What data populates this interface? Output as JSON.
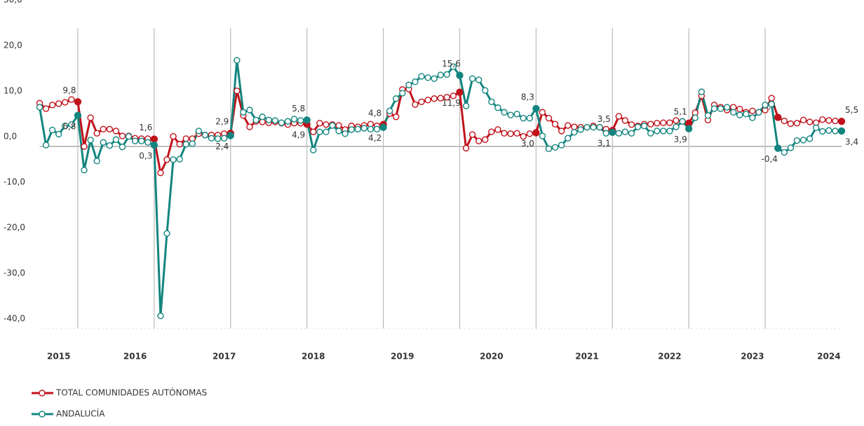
{
  "chart_data": {
    "type": "line",
    "categories": [
      null,
      null,
      null,
      "2015",
      null,
      null,
      null,
      null,
      null,
      null,
      null,
      null,
      null,
      null,
      null,
      "2016",
      null,
      null,
      null,
      null,
      null,
      null,
      null,
      null,
      null,
      null,
      null,
      null,
      null,
      "2017",
      null,
      null,
      null,
      null,
      null,
      null,
      null,
      null,
      null,
      null,
      null,
      null,
      null,
      "2018",
      null,
      null,
      null,
      null,
      null,
      null,
      null,
      null,
      null,
      null,
      null,
      null,
      null,
      "2019",
      null,
      null,
      null,
      null,
      null,
      null,
      null,
      null,
      null,
      null,
      null,
      null,
      null,
      "2020",
      null,
      null,
      null,
      null,
      null,
      null,
      null,
      null,
      null,
      null,
      null,
      null,
      null,
      null,
      "2021",
      null,
      null,
      null,
      null,
      null,
      null,
      null,
      null,
      null,
      null,
      null,
      null,
      "2022",
      null,
      null,
      null,
      null,
      null,
      null,
      null,
      null,
      null,
      null,
      null,
      null,
      "2023",
      null,
      null,
      null,
      null,
      null,
      null,
      null,
      null,
      null,
      null,
      null,
      "2024",
      null,
      null
    ],
    "series": [
      {
        "name": "TOTAL COMUNIDADES AUTÓNOMAS",
        "color": "#c0121b",
        "values": [
          9.5,
          8.3,
          9.1,
          9.4,
          9.7,
          10.3,
          9.8,
          0,
          6.3,
          2.9,
          3.8,
          3.8,
          3.4,
          2.3,
          2.3,
          1.8,
          1.7,
          1.7,
          1.6,
          -5.8,
          -2.9,
          2.2,
          0.5,
          1.7,
          1.7,
          2.8,
          2.5,
          2.5,
          2.5,
          2.8,
          2.9,
          12.2,
          6.8,
          4.3,
          5.5,
          5.4,
          5.2,
          5.4,
          5.1,
          4.8,
          5.1,
          5.1,
          4.9,
          3.2,
          5.1,
          4.8,
          4.8,
          4.6,
          3.7,
          4.5,
          4.3,
          4.6,
          4.9,
          4.5,
          4.8,
          7.2,
          6.5,
          12.5,
          12.6,
          9.2,
          9.8,
          10.2,
          10.5,
          10.6,
          10.8,
          11.1,
          11.9,
          -0.4,
          2.6,
          1.2,
          1.5,
          3.2,
          3.7,
          2.9,
          2.8,
          2.9,
          2.2,
          2.8,
          3.0,
          7.5,
          6.2,
          4.9,
          3.4,
          4.6,
          4.3,
          4.2,
          4.2,
          4.5,
          4.2,
          3.8,
          3.5,
          6.6,
          5.7,
          4.8,
          4.5,
          4.9,
          4.9,
          5.1,
          5.2,
          5.2,
          5.7,
          5.5,
          5.1,
          7.4,
          11.1,
          5.8,
          9.1,
          8.6,
          8.0,
          8.6,
          8.2,
          7.5,
          7.8,
          7.5,
          8.0,
          10.6,
          6.4,
          5.6,
          5.0,
          5.1,
          5.8,
          5.4,
          5.2,
          5.9,
          5.7,
          5.6,
          5.5
        ],
        "value_labels": [
          null,
          null,
          null,
          null,
          null,
          null,
          "9,8",
          null,
          null,
          null,
          null,
          null,
          null,
          null,
          null,
          null,
          null,
          null,
          "1,6",
          null,
          null,
          null,
          null,
          null,
          null,
          null,
          null,
          null,
          null,
          null,
          "2,9",
          null,
          null,
          null,
          null,
          null,
          null,
          null,
          null,
          null,
          null,
          null,
          "4,9",
          null,
          null,
          null,
          null,
          null,
          null,
          null,
          null,
          null,
          null,
          null,
          "4,8",
          null,
          null,
          null,
          null,
          null,
          null,
          null,
          null,
          null,
          null,
          null,
          "11,9",
          null,
          null,
          null,
          null,
          null,
          null,
          null,
          null,
          null,
          null,
          null,
          "3,0",
          null,
          null,
          null,
          null,
          null,
          null,
          null,
          null,
          null,
          null,
          null,
          "3,5",
          null,
          null,
          null,
          null,
          null,
          null,
          null,
          null,
          null,
          null,
          null,
          "5,1",
          null,
          null,
          null,
          null,
          null,
          null,
          null,
          null,
          null,
          null,
          null,
          null,
          null,
          "6,4",
          null,
          null,
          null,
          null,
          null,
          null,
          null,
          null,
          null,
          "5,5"
        ]
      },
      {
        "name": "ANDALUCÍA",
        "color": "#13857f",
        "values": [
          8.6,
          0.3,
          3.6,
          2.7,
          4.5,
          4.8,
          6.8,
          -5.2,
          1.4,
          -3.2,
          0.9,
          0.2,
          1.5,
          -0.1,
          2.2,
          1.2,
          1.2,
          0.9,
          0.3,
          -37.2,
          -19.1,
          -2.9,
          -2.8,
          0.5,
          0.6,
          3.4,
          2.5,
          1.8,
          1.7,
          1.8,
          2.4,
          18.9,
          7.5,
          8.0,
          5.8,
          6.5,
          5.8,
          5.7,
          5.2,
          5.5,
          6.0,
          5.7,
          5.8,
          -0.8,
          3.2,
          3.2,
          4.6,
          3.4,
          2.8,
          3.7,
          3.8,
          4.0,
          3.8,
          3.8,
          4.2,
          7.8,
          10.5,
          11.7,
          13.5,
          14.2,
          15.4,
          15.1,
          14.9,
          15.7,
          15.8,
          17.5,
          15.6,
          8.9,
          14.9,
          14.6,
          12.3,
          9.8,
          8.5,
          7.5,
          6.9,
          7.1,
          6.2,
          6.2,
          8.3,
          2.3,
          -0.5,
          -0.2,
          0.3,
          1.8,
          3.1,
          3.7,
          4.2,
          4.2,
          4.2,
          2.9,
          3.1,
          2.9,
          3.2,
          2.9,
          4.3,
          4.5,
          2.9,
          3.4,
          3.4,
          3.4,
          4.3,
          5.5,
          3.9,
          6.3,
          12.0,
          6.8,
          8.3,
          8.3,
          8.6,
          7.5,
          6.9,
          7.1,
          6.3,
          7.5,
          9.1,
          9.3,
          -0.4,
          -1.3,
          -0.3,
          1.3,
          1.4,
          1.7,
          4.1,
          3.3,
          3.5,
          3.4,
          3.4
        ],
        "value_labels": [
          null,
          null,
          null,
          null,
          null,
          null,
          "6,8",
          null,
          null,
          null,
          null,
          null,
          null,
          null,
          null,
          null,
          null,
          null,
          "0,3",
          null,
          null,
          null,
          null,
          null,
          null,
          null,
          null,
          null,
          null,
          null,
          "2,4",
          null,
          null,
          null,
          null,
          null,
          null,
          null,
          null,
          null,
          null,
          null,
          "5,8",
          null,
          null,
          null,
          null,
          null,
          null,
          null,
          null,
          null,
          null,
          null,
          "4,2",
          null,
          null,
          null,
          null,
          null,
          null,
          null,
          null,
          null,
          null,
          null,
          "15,6",
          null,
          null,
          null,
          null,
          null,
          null,
          null,
          null,
          null,
          null,
          null,
          "8,3",
          null,
          null,
          null,
          null,
          null,
          null,
          null,
          null,
          null,
          null,
          null,
          "3,1",
          null,
          null,
          null,
          null,
          null,
          null,
          null,
          null,
          null,
          null,
          null,
          "3,9",
          null,
          null,
          null,
          null,
          null,
          null,
          null,
          null,
          null,
          null,
          null,
          null,
          null,
          "-0,4",
          null,
          null,
          null,
          null,
          null,
          null,
          null,
          null,
          null,
          "3,4"
        ]
      }
    ],
    "ylim": [
      -40,
      30
    ],
    "yticks": [
      {
        "value": 30,
        "label": "30,0"
      },
      {
        "value": 20,
        "label": "20,0"
      },
      {
        "value": 10,
        "label": "10,0"
      },
      {
        "value": 0,
        "label": "0,0"
      },
      {
        "value": -10,
        "label": "-10,0"
      },
      {
        "value": -20,
        "label": "-20,0"
      },
      {
        "value": -30,
        "label": "-30,0"
      },
      {
        "value": -40,
        "label": "-40,0"
      }
    ],
    "legend": "bottom-left"
  }
}
